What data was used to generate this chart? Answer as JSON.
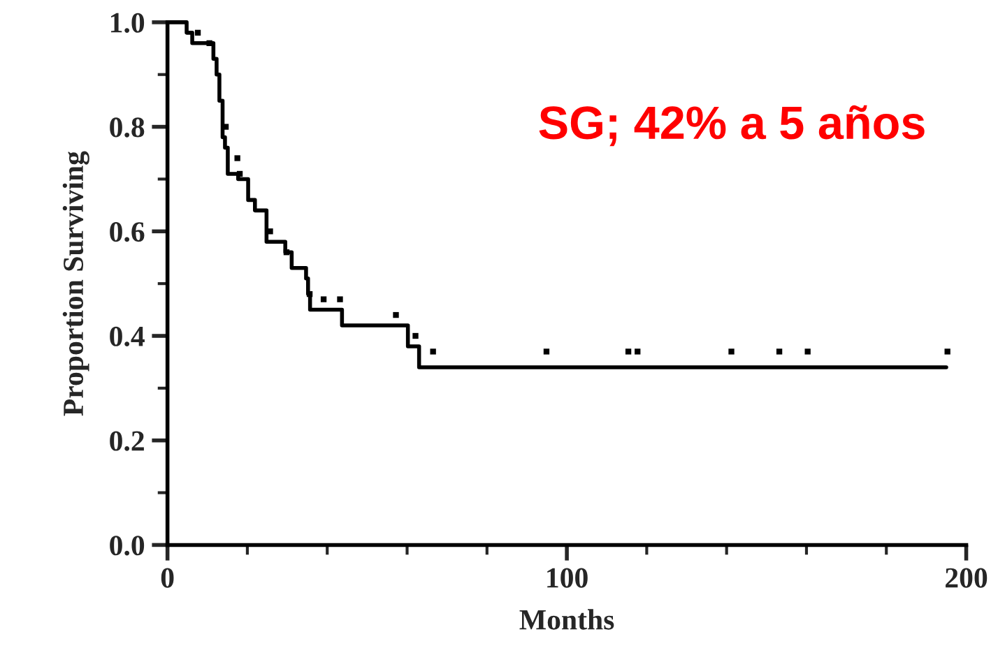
{
  "chart_data": {
    "type": "step",
    "xlabel": "Months",
    "ylabel": "Proportion Surviving",
    "annotations": [
      "SG; 42% a 5 años"
    ],
    "series": [
      {
        "color": "#000000",
        "marker": "none",
        "x": [
          0,
          4.8,
          6.2,
          11.5,
          12.3,
          13.0,
          13.8,
          14.4,
          15.1,
          17.7,
          20.2,
          21.9,
          24.8,
          29.5,
          31.1,
          34.7,
          35.2,
          35.7,
          43.7,
          60.2,
          63.0,
          195
        ],
        "values": [
          1.0,
          0.98,
          0.96,
          0.93,
          0.9,
          0.85,
          0.78,
          0.76,
          0.71,
          0.7,
          0.66,
          0.64,
          0.58,
          0.56,
          0.53,
          0.51,
          0.48,
          0.45,
          0.42,
          0.38,
          0.34,
          0.34
        ]
      },
      {
        "type": "scatter",
        "color": "#000000",
        "marker": "square",
        "x": [
          7.6,
          10.5,
          14.6,
          17.5,
          18.1,
          25.7,
          29.8,
          35.6,
          39.1,
          43.2,
          57.2,
          62.1,
          66.5,
          94.9,
          115.4,
          117.7,
          141.2,
          153.2,
          160.3,
          195.3
        ],
        "values": [
          0.98,
          0.96,
          0.8,
          0.74,
          0.71,
          0.6,
          0.56,
          0.48,
          0.47,
          0.47,
          0.44,
          0.4,
          0.37,
          0.37,
          0.37,
          0.37,
          0.37,
          0.37,
          0.37,
          0.37
        ]
      }
    ],
    "xlim": [
      0,
      200
    ],
    "ylim": [
      0,
      1.0
    ],
    "xticks": [
      0,
      {
        "value": 20,
        "label": null
      },
      {
        "value": 40,
        "label": null
      },
      {
        "value": 60,
        "label": null
      },
      {
        "value": 80,
        "label": null
      },
      100,
      {
        "value": 120,
        "label": null
      },
      {
        "value": 140,
        "label": null
      },
      {
        "value": 160,
        "label": null
      },
      {
        "value": 180,
        "label": null
      },
      200
    ],
    "yticks": [
      {
        "value": 0,
        "label": "0.0"
      },
      {
        "value": 0.1,
        "label": null
      },
      {
        "value": 0.2,
        "label": "0.2"
      },
      {
        "value": 0.3,
        "label": null
      },
      {
        "value": 0.4,
        "label": "0.4"
      },
      {
        "value": 0.5,
        "label": null
      },
      {
        "value": 0.6,
        "label": "0.6"
      },
      {
        "value": 0.7,
        "label": null
      },
      {
        "value": 0.8,
        "label": "0.8"
      },
      {
        "value": 0.9,
        "label": null
      },
      {
        "value": 1.0,
        "label": "1.0"
      }
    ],
    "grid": false
  }
}
